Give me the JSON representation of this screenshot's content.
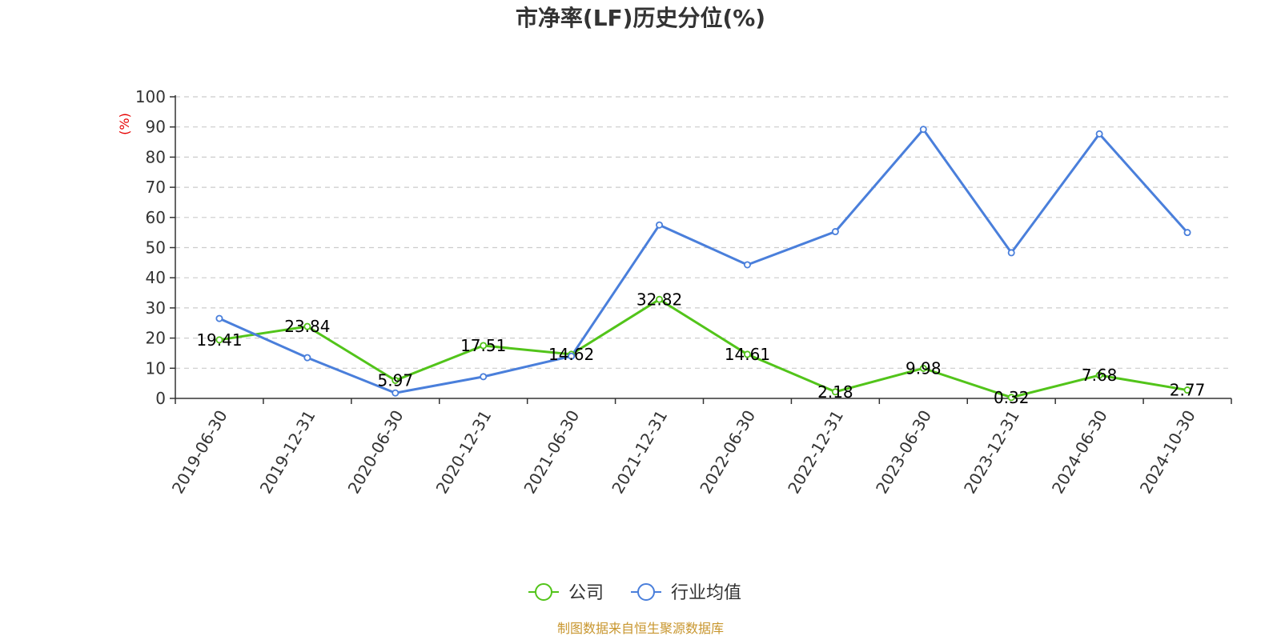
{
  "chart_data": {
    "type": "line",
    "title": "市净率(LF)历史分位(%)",
    "ylabel": "(%)",
    "ylabel_color": "#e60000",
    "ylim": [
      0,
      100
    ],
    "yticks": [
      0,
      10,
      20,
      30,
      40,
      50,
      60,
      70,
      80,
      90,
      100
    ],
    "grid": true,
    "legend_position": "bottom-center",
    "categories": [
      "2019-06-30",
      "2019-12-31",
      "2020-06-30",
      "2020-12-31",
      "2021-06-30",
      "2021-12-31",
      "2022-06-30",
      "2022-12-31",
      "2023-06-30",
      "2023-12-31",
      "2024-06-30",
      "2024-10-30"
    ],
    "series": [
      {
        "name": "公司",
        "color": "#52c41a",
        "values": [
          19.41,
          23.84,
          5.97,
          17.51,
          14.62,
          32.82,
          14.61,
          2.18,
          9.98,
          0.32,
          7.68,
          2.77
        ],
        "labels": [
          "19.41",
          "23.84",
          "5.97",
          "17.51",
          "14.62",
          "32.82",
          "14.61",
          "2.18",
          "9.98",
          "0.32",
          "7.68",
          "2.77"
        ]
      },
      {
        "name": "行业均值",
        "color": "#4a7fdb",
        "values": [
          26.5,
          13.5,
          1.8,
          7.2,
          14.0,
          57.5,
          44.3,
          55.3,
          89.2,
          48.3,
          87.7,
          55.0
        ]
      }
    ],
    "source": "制图数据来自恒生聚源数据库",
    "source_color": "#c8962e"
  }
}
